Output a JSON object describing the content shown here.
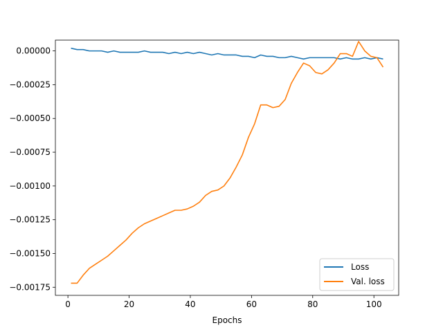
{
  "chart_data": {
    "type": "line",
    "title": "",
    "xlabel": "Epochs",
    "ylabel": "",
    "xlim": [
      -4.1,
      108.1
    ],
    "ylim": [
      -0.00181,
      8e-05
    ],
    "xticks": [
      0,
      20,
      40,
      60,
      80,
      100
    ],
    "xtick_labels": [
      "0",
      "20",
      "40",
      "60",
      "80",
      "100"
    ],
    "yticks": [
      0.0,
      -0.00025,
      -0.0005,
      -0.00075,
      -0.001,
      -0.00125,
      -0.0015,
      -0.00175
    ],
    "ytick_labels": [
      "0.00000",
      "−0.00025",
      "−0.00050",
      "−0.00075",
      "−0.00100",
      "−0.00125",
      "−0.00150",
      "−0.00175"
    ],
    "grid": false,
    "legend_position": "lower-right",
    "series": [
      {
        "name": "Loss",
        "color": "#1f77b4",
        "x": [
          1,
          3,
          5,
          7,
          9,
          11,
          13,
          15,
          17,
          19,
          21,
          23,
          25,
          27,
          29,
          31,
          33,
          35,
          37,
          39,
          41,
          43,
          45,
          47,
          49,
          51,
          53,
          55,
          57,
          59,
          61,
          63,
          65,
          67,
          69,
          71,
          73,
          75,
          77,
          79,
          81,
          83,
          85,
          87,
          89,
          91,
          93,
          95,
          97,
          99,
          101,
          103
        ],
        "y": [
          2e-05,
          1e-05,
          1e-05,
          0.0,
          0.0,
          0.0,
          -1e-05,
          0.0,
          -1e-05,
          -1e-05,
          -1e-05,
          -1e-05,
          0.0,
          -1e-05,
          -1e-05,
          -1e-05,
          -2e-05,
          -1e-05,
          -2e-05,
          -1e-05,
          -2e-05,
          -1e-05,
          -2e-05,
          -3e-05,
          -2e-05,
          -3e-05,
          -3e-05,
          -3e-05,
          -4e-05,
          -4e-05,
          -5e-05,
          -3e-05,
          -4e-05,
          -4e-05,
          -5e-05,
          -5e-05,
          -4e-05,
          -5e-05,
          -6e-05,
          -5e-05,
          -5e-05,
          -5e-05,
          -5e-05,
          -5e-05,
          -6e-05,
          -5e-05,
          -6e-05,
          -6e-05,
          -5e-05,
          -6e-05,
          -5e-05,
          -6e-05
        ]
      },
      {
        "name": "Val. loss",
        "color": "#ff7f0e",
        "x": [
          1,
          3,
          5,
          7,
          9,
          11,
          13,
          15,
          17,
          19,
          21,
          23,
          25,
          27,
          29,
          31,
          33,
          35,
          37,
          39,
          41,
          43,
          45,
          47,
          49,
          51,
          53,
          55,
          57,
          59,
          61,
          63,
          65,
          67,
          69,
          71,
          73,
          75,
          77,
          79,
          81,
          83,
          85,
          87,
          89,
          91,
          93,
          95,
          97,
          99,
          101,
          103
        ],
        "y": [
          -0.00172,
          -0.00172,
          -0.00166,
          -0.00161,
          -0.00158,
          -0.00155,
          -0.00152,
          -0.00148,
          -0.00144,
          -0.0014,
          -0.00135,
          -0.00131,
          -0.00128,
          -0.00126,
          -0.00124,
          -0.00122,
          -0.0012,
          -0.00118,
          -0.00118,
          -0.00117,
          -0.00115,
          -0.00112,
          -0.00107,
          -0.00104,
          -0.00103,
          -0.001,
          -0.00094,
          -0.00086,
          -0.00077,
          -0.00064,
          -0.00054,
          -0.0004,
          -0.0004,
          -0.00042,
          -0.00041,
          -0.00036,
          -0.00024,
          -0.00016,
          -9e-05,
          -0.00011,
          -0.00016,
          -0.00017,
          -0.00014,
          -9e-05,
          -2e-05,
          -2e-05,
          -4e-05,
          7e-05,
          0.0,
          -4e-05,
          -5e-05,
          -0.00012
        ]
      }
    ]
  }
}
